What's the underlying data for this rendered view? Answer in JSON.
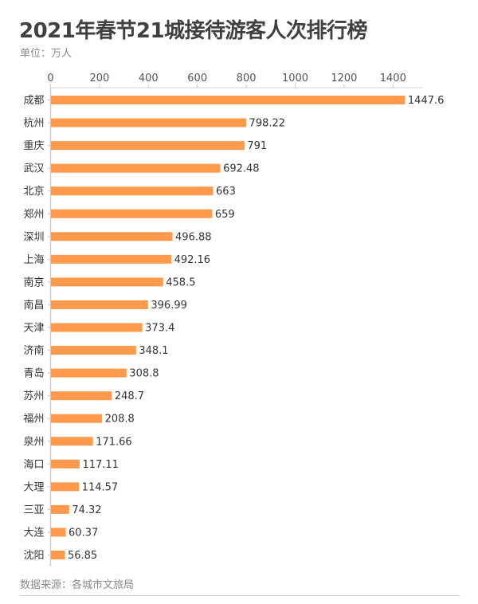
{
  "chart_data": {
    "type": "bar",
    "orientation": "horizontal",
    "title": "2021年春节21城接待游客人次排行榜",
    "subtitle": "单位：万人",
    "source": "数据来源：各城市文旅局",
    "categories": [
      "成都",
      "杭州",
      "重庆",
      "武汉",
      "北京",
      "郑州",
      "深圳",
      "上海",
      "南京",
      "南昌",
      "天津",
      "济南",
      "青岛",
      "苏州",
      "福州",
      "泉州",
      "海口",
      "大理",
      "三亚",
      "大连",
      "沈阳"
    ],
    "values": [
      1447.6,
      798.22,
      791,
      692.48,
      663,
      659,
      496.88,
      492.16,
      458.5,
      396.99,
      373.4,
      348.1,
      308.8,
      248.7,
      208.8,
      171.66,
      117.11,
      114.57,
      74.32,
      60.37,
      56.85
    ],
    "value_labels": [
      "1447.6",
      "798.22",
      "791",
      "692.48",
      "663",
      "659",
      "496.88",
      "492.16",
      "458.5",
      "396.99",
      "373.4",
      "348.1",
      "308.8",
      "248.7",
      "208.8",
      "171.66",
      "117.11",
      "114.57",
      "74.32",
      "60.37",
      "56.85"
    ],
    "x_ticks": [
      "0",
      "200",
      "400",
      "600",
      "800",
      "1000",
      "1200",
      "1400"
    ],
    "xlim": [
      0,
      1500
    ],
    "axis_position": "top",
    "grid": false,
    "bar_color": "#FF9A4D"
  }
}
